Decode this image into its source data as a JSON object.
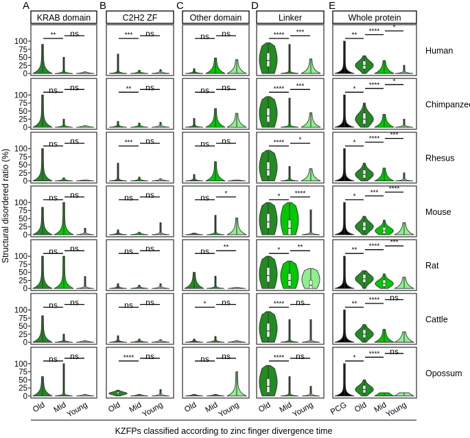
{
  "chart_data": {
    "type": "violin",
    "ylabel": "Structural disordered ratio (%)",
    "xlabel": "KZFPs classified according to zinc finger divergence time",
    "ylim": [
      0,
      100
    ],
    "yticks": [
      "0",
      "25",
      "50",
      "75",
      "100"
    ],
    "grid": false,
    "colors": {
      "PCG": "#000000",
      "Old": "#228b22",
      "Mid": "#00c800",
      "Young": "#90ee90"
    },
    "panels": [
      {
        "letter": "A",
        "title": "KRAB domain",
        "groups": [
          "Old",
          "Mid",
          "Young"
        ]
      },
      {
        "letter": "B",
        "title": "C2H2 ZF",
        "groups": [
          "Old",
          "Mid",
          "Young"
        ]
      },
      {
        "letter": "C",
        "title": "Other domain",
        "groups": [
          "Old",
          "Mid",
          "Young"
        ]
      },
      {
        "letter": "D",
        "title": "Linker",
        "groups": [
          "Old",
          "Mid",
          "Young"
        ]
      },
      {
        "letter": "E",
        "title": "Whole protein",
        "groups": [
          "PCG",
          "Old",
          "Mid",
          "Young"
        ]
      }
    ],
    "rows": [
      {
        "species": "Human",
        "sig": [
          [
            "**",
            "ns"
          ],
          [
            "***",
            "ns"
          ],
          [
            "ns",
            "ns"
          ],
          [
            "****",
            "***"
          ],
          [
            "**",
            "****",
            "*"
          ]
        ],
        "violins": [
          [
            {
              "shape": "base",
              "max": 90
            },
            {
              "shape": "spike",
              "max": 50
            },
            {
              "shape": "spike",
              "max": 5
            }
          ],
          [
            {
              "shape": "spike",
              "max": 60
            },
            {
              "shape": "spike",
              "max": 10
            },
            {
              "shape": "spike",
              "max": 12
            }
          ],
          [
            {
              "shape": "spike",
              "max": 15
            },
            {
              "shape": "base",
              "max": 48
            },
            {
              "shape": "base",
              "max": 43
            }
          ],
          [
            {
              "shape": "full",
              "max": 95,
              "median": 40
            },
            {
              "shape": "spike",
              "max": 90
            },
            {
              "shape": "base",
              "max": 45
            }
          ],
          [
            {
              "shape": "pcg",
              "max": 100
            },
            {
              "shape": "bulb",
              "max": 55,
              "median": 25
            },
            {
              "shape": "base",
              "max": 40
            },
            {
              "shape": "spike",
              "max": 25
            }
          ]
        ]
      },
      {
        "species": "Chimpanzee",
        "sig": [
          [
            "ns",
            "ns"
          ],
          [
            "**",
            "ns"
          ],
          [
            "ns",
            "ns"
          ],
          [
            "****",
            "***"
          ],
          [
            "*",
            "****",
            "*"
          ]
        ],
        "violins": [
          [
            {
              "shape": "base",
              "max": 100
            },
            {
              "shape": "spike",
              "max": 25
            },
            {
              "shape": "spike",
              "max": 5
            }
          ],
          [
            {
              "shape": "spike",
              "max": 18
            },
            {
              "shape": "spike",
              "max": 13
            },
            {
              "shape": "spike",
              "max": 15
            }
          ],
          [
            {
              "shape": "spike",
              "max": 27
            },
            {
              "shape": "base",
              "max": 58
            },
            {
              "shape": "base",
              "max": 43
            }
          ],
          [
            {
              "shape": "full",
              "max": 95,
              "median": 35
            },
            {
              "shape": "spike",
              "max": 90
            },
            {
              "shape": "base",
              "max": 45
            }
          ],
          [
            {
              "shape": "pcg",
              "max": 100
            },
            {
              "shape": "bulb",
              "max": 75,
              "median": 25
            },
            {
              "shape": "base",
              "max": 40
            },
            {
              "shape": "spike",
              "max": 25
            }
          ]
        ]
      },
      {
        "species": "Rhesus",
        "sig": [
          [
            "ns",
            "ns"
          ],
          [
            "***",
            "ns"
          ],
          [
            "ns",
            "ns"
          ],
          [
            "****",
            "*"
          ],
          [
            "*",
            "****",
            "***"
          ]
        ],
        "violins": [
          [
            {
              "shape": "base",
              "max": 100
            },
            {
              "shape": "spike",
              "max": 10
            },
            {
              "shape": "spike",
              "max": 3
            }
          ],
          [
            {
              "shape": "spike",
              "max": 55
            },
            {
              "shape": "spike",
              "max": 12
            },
            {
              "shape": "spike",
              "max": 7
            }
          ],
          [
            {
              "shape": "spike",
              "max": 20
            },
            {
              "shape": "base",
              "max": 60
            },
            {
              "shape": "spike",
              "max": 3
            }
          ],
          [
            {
              "shape": "full",
              "max": 95,
              "median": 35
            },
            {
              "shape": "spike",
              "max": 45
            },
            {
              "shape": "base",
              "max": 38
            }
          ],
          [
            {
              "shape": "pcg",
              "max": 100
            },
            {
              "shape": "bulb",
              "max": 55,
              "median": 20
            },
            {
              "shape": "base",
              "max": 40
            },
            {
              "shape": "spike",
              "max": 25
            }
          ]
        ]
      },
      {
        "species": "Mouse",
        "sig": [
          [
            "ns",
            "ns"
          ],
          [
            "ns",
            "ns"
          ],
          [
            "ns",
            "*"
          ],
          [
            "*",
            "****"
          ],
          [
            "*",
            "***",
            "****"
          ]
        ],
        "violins": [
          [
            {
              "shape": "base",
              "max": 85
            },
            {
              "shape": "base",
              "max": 100
            },
            {
              "shape": "spike",
              "max": 20
            }
          ],
          [
            {
              "shape": "spike",
              "max": 15
            },
            {
              "shape": "spike",
              "max": 8
            },
            {
              "shape": "spike",
              "max": 37
            }
          ],
          [
            {
              "shape": "spike",
              "max": 5
            },
            {
              "shape": "spike",
              "max": 60
            },
            {
              "shape": "base",
              "max": 52
            }
          ],
          [
            {
              "shape": "full",
              "max": 100,
              "median": 40
            },
            {
              "shape": "full",
              "max": 100,
              "median": 20
            },
            {
              "shape": "spike",
              "max": 77
            }
          ],
          [
            {
              "shape": "pcg",
              "max": 100
            },
            {
              "shape": "bulb",
              "max": 57,
              "median": 25
            },
            {
              "shape": "bulb",
              "max": 45,
              "median": 12
            },
            {
              "shape": "base",
              "max": 37
            }
          ]
        ]
      },
      {
        "species": "Rat",
        "sig": [
          [
            "ns",
            "ns"
          ],
          [
            "ns",
            "ns"
          ],
          [
            "ns",
            "**"
          ],
          [
            "*",
            "**"
          ],
          [
            "**",
            "****",
            "***"
          ]
        ],
        "violins": [
          [
            {
              "shape": "base",
              "max": 100
            },
            {
              "shape": "base",
              "max": 100
            },
            {
              "shape": "spike",
              "max": 37
            }
          ],
          [
            {
              "shape": "spike",
              "max": 15
            },
            {
              "shape": "spike",
              "max": 10
            },
            {
              "shape": "spike",
              "max": 15
            }
          ],
          [
            {
              "shape": "base",
              "max": 50
            },
            {
              "shape": "spike",
              "max": 38
            },
            {
              "shape": "spike",
              "max": 3
            }
          ],
          [
            {
              "shape": "full",
              "max": 100,
              "median": 40
            },
            {
              "shape": "full",
              "max": 85,
              "median": 25
            },
            {
              "shape": "full",
              "max": 62,
              "median": 10
            }
          ],
          [
            {
              "shape": "pcg",
              "max": 100
            },
            {
              "shape": "bulb",
              "max": 55,
              "median": 30
            },
            {
              "shape": "bulb",
              "max": 45,
              "median": 15
            },
            {
              "shape": "base",
              "max": 35
            }
          ]
        ]
      },
      {
        "species": "Cattle",
        "sig": [
          [
            "ns",
            "ns"
          ],
          [
            "ns",
            "ns"
          ],
          [
            "*",
            "ns"
          ],
          [
            "****",
            "ns"
          ],
          [
            "**",
            "****",
            "ns"
          ]
        ],
        "violins": [
          [
            {
              "shape": "base",
              "max": 82
            },
            {
              "shape": "spike",
              "max": 25
            },
            {
              "shape": "spike",
              "max": 5
            }
          ],
          [
            {
              "shape": "spike",
              "max": 20
            },
            {
              "shape": "spike",
              "max": 10
            },
            {
              "shape": "spike",
              "max": 8
            }
          ],
          [
            {
              "shape": "spike",
              "max": 10
            },
            {
              "shape": "spike",
              "max": 18
            },
            {
              "shape": "spike",
              "max": 5
            }
          ],
          [
            {
              "shape": "full",
              "max": 95,
              "median": 35
            },
            {
              "shape": "spike",
              "max": 70
            },
            {
              "shape": "spike",
              "max": 70
            }
          ],
          [
            {
              "shape": "pcg",
              "max": 100
            },
            {
              "shape": "bulb",
              "max": 55,
              "median": 25
            },
            {
              "shape": "base",
              "max": 40
            },
            {
              "shape": "base",
              "max": 32
            }
          ]
        ]
      },
      {
        "species": "Opossum",
        "sig": [
          [
            "ns",
            "ns"
          ],
          [
            "****",
            "ns"
          ],
          [
            "ns",
            "ns"
          ],
          [
            "****",
            "ns"
          ],
          [
            "*",
            "****",
            "ns"
          ]
        ],
        "violins": [
          [
            {
              "shape": "base",
              "max": 60
            },
            {
              "shape": "spike",
              "max": 100
            },
            {
              "shape": "spike",
              "max": 5
            }
          ],
          [
            {
              "shape": "bulb",
              "max": 18,
              "median": 8
            },
            {
              "shape": "spike",
              "max": 5
            },
            {
              "shape": "spike",
              "max": 20
            }
          ],
          [
            {
              "shape": "spike",
              "max": 5
            },
            {
              "shape": "spike",
              "max": 5
            },
            {
              "shape": "base",
              "max": 75
            }
          ],
          [
            {
              "shape": "full",
              "max": 95,
              "median": 30
            },
            {
              "shape": "spike",
              "max": 60
            },
            {
              "shape": "spike",
              "max": 30
            }
          ],
          [
            {
              "shape": "pcg",
              "max": 100
            },
            {
              "shape": "bulb",
              "max": 50,
              "median": 20
            },
            {
              "shape": "base",
              "max": 10
            },
            {
              "shape": "base",
              "max": 10
            }
          ]
        ]
      }
    ]
  }
}
